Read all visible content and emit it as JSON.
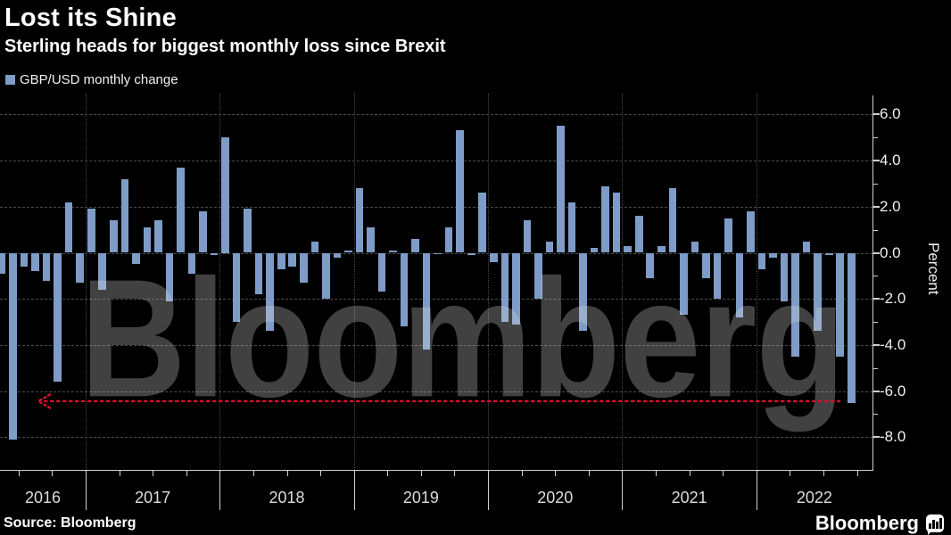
{
  "header": {
    "title": "Lost its Shine",
    "subtitle": "Sterling heads for biggest monthly loss since Brexit",
    "legend": {
      "label": "GBP/USD monthly change",
      "swatch_color": "#7e9cc7"
    }
  },
  "chart_data": {
    "type": "bar",
    "title": "Lost its Shine",
    "subtitle": "Sterling heads for biggest monthly loss since Brexit",
    "series_name": "GBP/USD monthly change",
    "ylabel": "Percent",
    "ylim": [
      -8.8,
      6.9
    ],
    "yticks": [
      6,
      4,
      2,
      0,
      -2,
      -4,
      -6,
      -8
    ],
    "ytick_labels": [
      "6.0",
      "4.0",
      "2.0",
      "0.0",
      "-2.0",
      "-4.0",
      "-6.0",
      "-8.0"
    ],
    "year_labels": [
      "2016",
      "2017",
      "2018",
      "2019",
      "2020",
      "2021",
      "2022"
    ],
    "grid": "horizontal dashed every 2.0, vertical dotted at year boundaries",
    "legend_position": "top-left",
    "bar_color": "#7e9cc7",
    "watermark": "Bloomberg",
    "annotation_line": {
      "type": "dotted-horizontal-line-with-left-arrow",
      "value": -6.44,
      "color": "#d8112d",
      "x_start_month": "2016-07",
      "x_end_month": "2022-08"
    },
    "x": [
      "2016-05",
      "2016-06",
      "2016-07",
      "2016-08",
      "2016-09",
      "2016-10",
      "2016-11",
      "2016-12",
      "2017-01",
      "2017-02",
      "2017-03",
      "2017-04",
      "2017-05",
      "2017-06",
      "2017-07",
      "2017-08",
      "2017-09",
      "2017-10",
      "2017-11",
      "2017-12",
      "2018-01",
      "2018-02",
      "2018-03",
      "2018-04",
      "2018-05",
      "2018-06",
      "2018-07",
      "2018-08",
      "2018-09",
      "2018-10",
      "2018-11",
      "2018-12",
      "2019-01",
      "2019-02",
      "2019-03",
      "2019-04",
      "2019-05",
      "2019-06",
      "2019-07",
      "2019-08",
      "2019-09",
      "2019-10",
      "2019-11",
      "2019-12",
      "2020-01",
      "2020-02",
      "2020-03",
      "2020-04",
      "2020-05",
      "2020-06",
      "2020-07",
      "2020-08",
      "2020-09",
      "2020-10",
      "2020-11",
      "2020-12",
      "2021-01",
      "2021-02",
      "2021-03",
      "2021-04",
      "2021-05",
      "2021-06",
      "2021-07",
      "2021-08",
      "2021-09",
      "2021-10",
      "2021-11",
      "2021-12",
      "2022-01",
      "2022-02",
      "2022-03",
      "2022-04",
      "2022-05",
      "2022-06",
      "2022-07",
      "2022-08",
      "2022-09"
    ],
    "values": [
      -0.9,
      -8.1,
      -0.6,
      -0.8,
      -1.2,
      -5.6,
      2.2,
      -1.3,
      1.9,
      -1.6,
      1.4,
      3.2,
      -0.5,
      1.1,
      1.4,
      -2.1,
      3.7,
      -0.9,
      1.8,
      -0.1,
      5.0,
      -3.0,
      1.9,
      -1.8,
      -3.4,
      -0.7,
      -0.6,
      -1.3,
      0.5,
      -2.0,
      -0.2,
      0.1,
      2.8,
      1.1,
      -1.7,
      0.1,
      -3.2,
      0.6,
      -4.2,
      0.0,
      1.1,
      5.3,
      -0.1,
      2.6,
      -0.4,
      -3.0,
      -3.1,
      1.4,
      -2.0,
      0.5,
      5.5,
      2.2,
      -3.4,
      0.2,
      2.9,
      2.6,
      0.3,
      1.6,
      -1.1,
      0.3,
      2.8,
      -2.7,
      0.5,
      -1.1,
      -2.0,
      1.5,
      -2.8,
      1.8,
      -0.7,
      -0.2,
      -2.1,
      -4.5,
      0.5,
      -3.4,
      -0.1,
      -4.5,
      -6.5
    ]
  },
  "footer": {
    "source": "Source: Bloomberg",
    "brand": "Bloomberg",
    "brand_icon": "bloomberg-chart-bubble-icon"
  }
}
